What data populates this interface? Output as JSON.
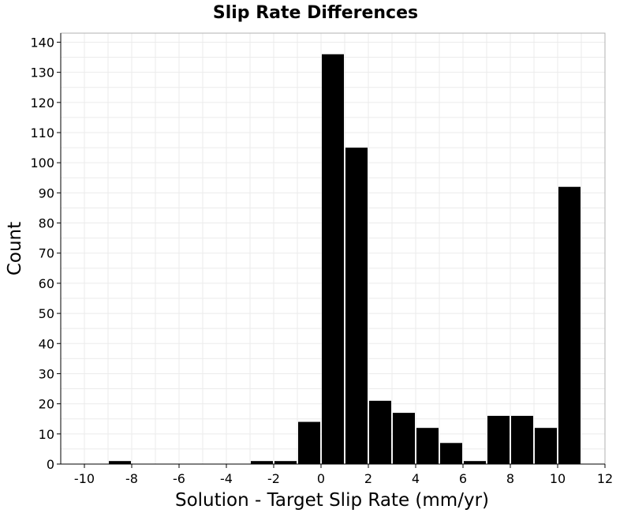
{
  "chart_data": {
    "type": "bar",
    "title": "Slip Rate Differences",
    "xlabel": "Solution - Target Slip Rate (mm/yr)",
    "ylabel": "Count",
    "xlim": [
      -11,
      12
    ],
    "ylim": [
      0,
      143
    ],
    "grid": true,
    "bin_width": 1,
    "x_ticks": [
      "-10",
      "-8",
      "-6",
      "-4",
      "-2",
      "0",
      "2",
      "4",
      "6",
      "8",
      "10",
      "12"
    ],
    "y_ticks": [
      "0",
      "10",
      "20",
      "30",
      "40",
      "50",
      "60",
      "70",
      "80",
      "90",
      "100",
      "110",
      "120",
      "130",
      "140"
    ],
    "x": [
      -8.5,
      -2.5,
      -1.5,
      -0.5,
      0.5,
      1.5,
      2.5,
      3.5,
      4.5,
      5.5,
      6.5,
      7.5,
      8.5,
      9.5,
      10.5
    ],
    "values": [
      1,
      1,
      1,
      14,
      136,
      105,
      21,
      17,
      12,
      7,
      1,
      16,
      16,
      12,
      92
    ],
    "bar_color": "#000000"
  }
}
